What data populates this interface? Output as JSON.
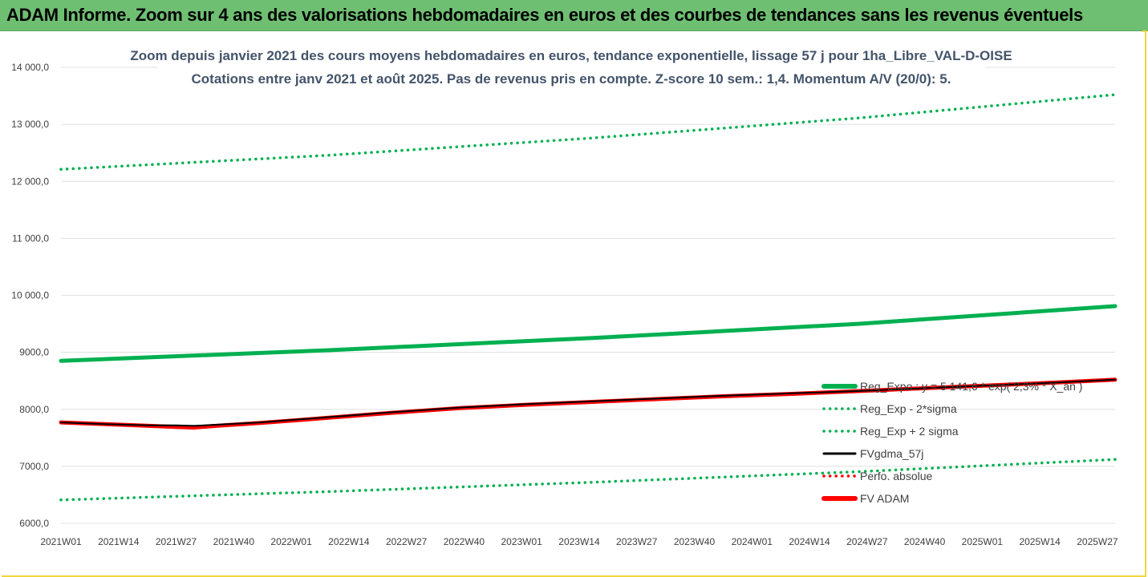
{
  "header": {
    "title": "ADAM Informe. Zoom sur 4 ans des valorisations hebdomadaires en euros et des courbes de tendances sans les revenus éventuels"
  },
  "colors": {
    "header_bg": "#6fbf73",
    "reg_exp": "#00b050",
    "band": "#00b050",
    "fvgdma": "#000000",
    "perfo": "#ff0000",
    "fvadam": "#ff0000",
    "frame_accent": "#f2d53c"
  },
  "chart_data": {
    "type": "line",
    "title": [
      "Zoom depuis janvier 2021 des cours moyens hebdomadaires en euros, tendance exponentielle, lissage 57 j pour 1ha_Libre_VAL-D-OISE",
      "Cotations entre janv 2021 et août 2025.  Pas de revenus pris en compte. Z-score 10 sem.: 1,4. Momentum A/V (20/0): 5."
    ],
    "x_tick_labels": [
      "2021W01",
      "2021W14",
      "2021W27",
      "2021W40",
      "2022W01",
      "2022W14",
      "2022W27",
      "2022W40",
      "2023W01",
      "2023W14",
      "2023W27",
      "2023W40",
      "2024W01",
      "2024W14",
      "2024W27",
      "2024W40",
      "2025W01",
      "2025W14",
      "2025W27"
    ],
    "x_range_weeks": [
      0,
      238
    ],
    "y_tick_labels": [
      "6000,0",
      "7000,0",
      "8000,0",
      "9000,0",
      "10 000,0",
      "11 000,0",
      "12 000,0",
      "13 000,0",
      "14 000,0"
    ],
    "ylim": [
      6000,
      14000
    ],
    "grid": "horizontal",
    "legend_position": "bottom-right",
    "series": [
      {
        "name": "Reg_Expo : y = 5 141,6 * exp( 2,3% * X_an )",
        "style": "solid-thick",
        "color": "#00b050",
        "points": [
          [
            0,
            8850
          ],
          [
            60,
            9035
          ],
          [
            120,
            9250
          ],
          [
            180,
            9500
          ],
          [
            238,
            9810
          ]
        ]
      },
      {
        "name": "Reg_Exp - 2*sigma",
        "style": "dotted",
        "color": "#00b050",
        "points": [
          [
            0,
            6410
          ],
          [
            60,
            6555
          ],
          [
            120,
            6720
          ],
          [
            180,
            6905
          ],
          [
            238,
            7120
          ]
        ]
      },
      {
        "name": "Reg_Exp + 2 sigma",
        "style": "dotted",
        "color": "#00b050",
        "points": [
          [
            0,
            12210
          ],
          [
            60,
            12455
          ],
          [
            120,
            12760
          ],
          [
            180,
            13110
          ],
          [
            238,
            13520
          ]
        ]
      },
      {
        "name": "FVgdma_57j",
        "style": "solid",
        "color": "#000000",
        "points": [
          [
            0,
            7770
          ],
          [
            10,
            7740
          ],
          [
            20,
            7720
          ],
          [
            26,
            7720
          ],
          [
            30,
            7710
          ],
          [
            35,
            7730
          ],
          [
            45,
            7770
          ],
          [
            55,
            7830
          ],
          [
            65,
            7890
          ],
          [
            75,
            7950
          ],
          [
            90,
            8030
          ],
          [
            105,
            8090
          ],
          [
            120,
            8140
          ],
          [
            135,
            8190
          ],
          [
            150,
            8240
          ],
          [
            165,
            8280
          ],
          [
            180,
            8320
          ],
          [
            195,
            8370
          ],
          [
            210,
            8420
          ],
          [
            225,
            8470
          ],
          [
            238,
            8520
          ]
        ]
      },
      {
        "name": "Perfo. absolue",
        "style": "dotted",
        "color": "#ff0000",
        "points": []
      },
      {
        "name": "FV ADAM",
        "style": "solid-thick",
        "color": "#ff0000",
        "points": [
          [
            0,
            7770
          ],
          [
            10,
            7740
          ],
          [
            20,
            7710
          ],
          [
            26,
            7690
          ],
          [
            30,
            7680
          ],
          [
            35,
            7710
          ],
          [
            45,
            7760
          ],
          [
            55,
            7820
          ],
          [
            65,
            7880
          ],
          [
            75,
            7940
          ],
          [
            90,
            8020
          ],
          [
            105,
            8080
          ],
          [
            120,
            8130
          ],
          [
            135,
            8180
          ],
          [
            150,
            8230
          ],
          [
            165,
            8270
          ],
          [
            180,
            8320
          ],
          [
            195,
            8370
          ],
          [
            210,
            8420
          ],
          [
            225,
            8470
          ],
          [
            238,
            8520
          ]
        ]
      }
    ]
  }
}
